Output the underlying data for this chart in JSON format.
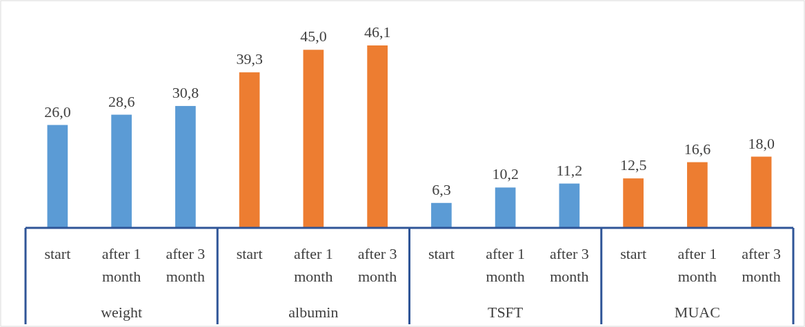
{
  "chart_data": {
    "type": "bar",
    "categories": [
      "start",
      "after 1 month",
      "after 3 month",
      "start",
      "after 1 month",
      "after 3 month",
      "start",
      "after 1 month",
      "after 3 month",
      "start",
      "after 1 month",
      "after 3 month"
    ],
    "values": [
      26.0,
      28.6,
      30.8,
      39.3,
      45.0,
      46.1,
      6.3,
      10.2,
      11.2,
      12.5,
      16.6,
      18.0
    ],
    "value_labels": [
      "26,0",
      "28,6",
      "30,8",
      "39,3",
      "45,0",
      "46,1",
      "6,3",
      "10,2",
      "11,2",
      "12,5",
      "16,6",
      "18,0"
    ],
    "colors": [
      "#5b9bd5",
      "#5b9bd5",
      "#5b9bd5",
      "#ed7d31",
      "#ed7d31",
      "#ed7d31",
      "#5b9bd5",
      "#5b9bd5",
      "#5b9bd5",
      "#ed7d31",
      "#ed7d31",
      "#ed7d31"
    ],
    "annotations": [
      "weight",
      "albumin",
      "TSFT",
      "MUAC"
    ]
  }
}
